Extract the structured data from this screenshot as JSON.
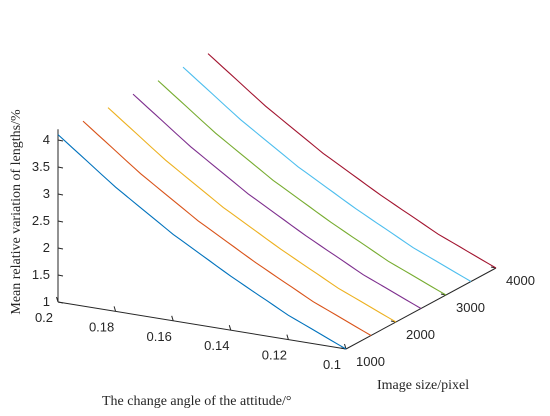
{
  "chart_data": {
    "type": "line",
    "title": "",
    "xlabel": "The change angle of the attitude/°",
    "ylabel": "Image size/pixel",
    "zlabel": "Mean relative variation of lengths/%",
    "x_ticks": [
      "0.1",
      "0.12",
      "0.14",
      "0.16",
      "0.18",
      "0.2"
    ],
    "y_ticks": [
      "1000",
      "2000",
      "3000",
      "4000"
    ],
    "z_ticks": [
      "1",
      "1.5",
      "2",
      "2.5",
      "3",
      "3.5",
      "4"
    ],
    "xlim": [
      0.1,
      0.2
    ],
    "ylim": [
      1000,
      4000
    ],
    "zlim": [
      1,
      4.2
    ],
    "grid": false,
    "legend": "none",
    "series": [
      {
        "color": "#0072BD",
        "y": 1000,
        "x": [
          0.1,
          0.12,
          0.14,
          0.16,
          0.18,
          0.2
        ],
        "z": [
          1.0,
          1.45,
          2.0,
          2.6,
          3.3,
          4.1
        ]
      },
      {
        "color": "#D95319",
        "y": 1500,
        "x": [
          0.1,
          0.12,
          0.14,
          0.16,
          0.18,
          0.2
        ],
        "z": [
          1.0,
          1.45,
          2.0,
          2.6,
          3.3,
          4.1
        ]
      },
      {
        "color": "#EDB120",
        "y": 2000,
        "x": [
          0.1,
          0.12,
          0.14,
          0.16,
          0.18,
          0.2
        ],
        "z": [
          1.0,
          1.45,
          2.0,
          2.6,
          3.3,
          4.1
        ]
      },
      {
        "color": "#7E2F8E",
        "y": 2500,
        "x": [
          0.1,
          0.12,
          0.14,
          0.16,
          0.18,
          0.2
        ],
        "z": [
          1.0,
          1.45,
          2.0,
          2.6,
          3.3,
          4.1
        ]
      },
      {
        "color": "#77AC30",
        "y": 3000,
        "x": [
          0.1,
          0.12,
          0.14,
          0.16,
          0.18,
          0.2
        ],
        "z": [
          1.0,
          1.45,
          2.0,
          2.6,
          3.3,
          4.1
        ]
      },
      {
        "color": "#4DBEEE",
        "y": 3500,
        "x": [
          0.1,
          0.12,
          0.14,
          0.16,
          0.18,
          0.2
        ],
        "z": [
          1.0,
          1.45,
          2.0,
          2.6,
          3.3,
          4.1
        ]
      },
      {
        "color": "#A2142F",
        "y": 4000,
        "x": [
          0.1,
          0.12,
          0.14,
          0.16,
          0.18,
          0.2
        ],
        "z": [
          1.0,
          1.45,
          2.0,
          2.6,
          3.3,
          4.1
        ]
      }
    ]
  }
}
